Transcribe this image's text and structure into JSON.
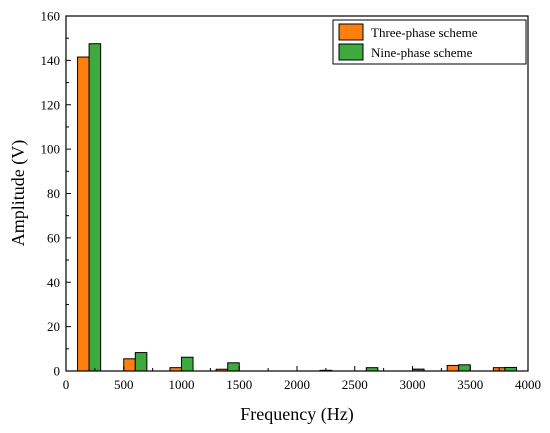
{
  "chart_data": {
    "type": "bar",
    "xlabel": "Frequency (Hz)",
    "ylabel": "Amplitude (V)",
    "xlim": [
      0,
      4000
    ],
    "ylim": [
      0,
      160
    ],
    "xticks": [
      0,
      500,
      1000,
      1500,
      2000,
      2500,
      3000,
      3500,
      4000
    ],
    "yticks": [
      0,
      20,
      40,
      60,
      80,
      100,
      120,
      140,
      160
    ],
    "grid": false,
    "legend_position": "top-right",
    "series": [
      {
        "name": "Three-phase scheme",
        "color": "#FF7F0E",
        "x": [
          150,
          550,
          950,
          1350,
          2250,
          2650,
          3050,
          3350,
          3750
        ],
        "values": [
          141.5,
          5.5,
          1.5,
          0.8,
          0.2,
          0.3,
          0.8,
          2.5,
          1.5
        ]
      },
      {
        "name": "Nine-phase scheme",
        "color": "#3DAA3D",
        "x": [
          250,
          650,
          1050,
          1450,
          2250,
          2650,
          3050,
          3450,
          3850
        ],
        "values": [
          147.5,
          8.3,
          6.2,
          3.7,
          0.2,
          1.5,
          0.8,
          2.8,
          1.6
        ]
      }
    ]
  }
}
